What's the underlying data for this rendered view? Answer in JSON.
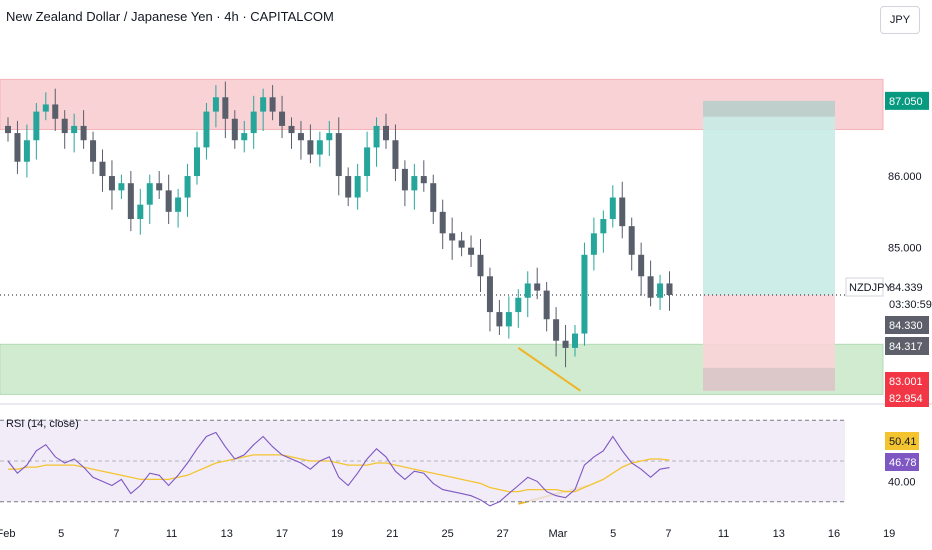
{
  "header": {
    "title": "New Zealand Dollar / Japanese Yen · 4h · CAPITALCOM",
    "currency_button": "JPY"
  },
  "colors": {
    "up": "#26a69a",
    "down": "#595e6b",
    "resistance_zone": "#f8c8cc",
    "support_zone": "#c8e8c8",
    "target": "#c8ebe6",
    "stop": "#f9d4d7",
    "rsi": "#7e57c2",
    "rsi_ma": "#f4c430",
    "annotation": "#f0b429",
    "tag_green": "#089981",
    "tag_red": "#f23645",
    "tag_gray": "#5d606b",
    "tag_purple": "#7e57c2",
    "tag_yellow": "#f4c430"
  },
  "chart_data": [
    {
      "type": "candlestick",
      "symbol": "NZDJPY",
      "timeframe": "4h",
      "x_tick_labels": [
        "Feb",
        "5",
        "7",
        "11",
        "13",
        "17",
        "19",
        "21",
        "25",
        "27",
        "Mar",
        "5",
        "7",
        "11",
        "13",
        "16",
        "19"
      ],
      "y_tick_labels": [
        "86.000",
        "85.000"
      ],
      "ylim": [
        82.9,
        87.9
      ],
      "close_series": [
        86.6,
        86.2,
        86.5,
        86.9,
        87.0,
        86.8,
        86.6,
        86.7,
        86.5,
        86.2,
        86.0,
        85.8,
        85.9,
        85.4,
        85.6,
        85.9,
        85.8,
        85.5,
        85.7,
        86.0,
        86.4,
        86.9,
        87.1,
        86.8,
        86.5,
        86.6,
        86.9,
        87.1,
        86.9,
        86.7,
        86.6,
        86.5,
        86.3,
        86.5,
        86.6,
        86.0,
        85.7,
        86.0,
        86.4,
        86.7,
        86.5,
        86.1,
        85.8,
        86.0,
        85.9,
        85.5,
        85.2,
        85.1,
        85.0,
        84.9,
        84.6,
        84.1,
        83.9,
        84.1,
        84.3,
        84.5,
        84.4,
        84.0,
        83.7,
        83.6,
        83.8,
        84.9,
        85.2,
        85.4,
        85.7,
        85.3,
        84.9,
        84.6,
        84.3,
        84.5,
        84.339
      ],
      "price_labels": [
        {
          "value": "87.050",
          "kind": "target"
        },
        {
          "value": "84.339",
          "kind": "last"
        },
        {
          "value": "03:30:59",
          "kind": "countdown"
        },
        {
          "value": "84.330",
          "kind": "gray"
        },
        {
          "value": "84.317",
          "kind": "gray"
        },
        {
          "value": "83.001",
          "kind": "stop"
        },
        {
          "value": "82.954",
          "kind": "stop_low"
        }
      ],
      "symbol_tag": "NZDJPY",
      "resistance_zone": [
        86.65,
        87.35
      ],
      "support_zone": [
        82.95,
        83.65
      ],
      "position": {
        "target": 87.05,
        "entry": 84.339,
        "stop": 83.001
      }
    },
    {
      "type": "line",
      "name": "RSI (14, close)",
      "y_tick_labels": [
        "40.00"
      ],
      "ylim": [
        25,
        75
      ],
      "bands": [
        70,
        30
      ],
      "midline": 50,
      "rsi": [
        50,
        44,
        48,
        55,
        58,
        52,
        49,
        51,
        47,
        42,
        40,
        38,
        41,
        34,
        38,
        44,
        43,
        38,
        43,
        49,
        56,
        62,
        64,
        57,
        51,
        53,
        58,
        62,
        57,
        53,
        51,
        49,
        46,
        50,
        52,
        42,
        38,
        44,
        51,
        56,
        52,
        45,
        41,
        45,
        44,
        39,
        36,
        35,
        34,
        33,
        31,
        28,
        30,
        34,
        38,
        42,
        40,
        35,
        33,
        32,
        36,
        48,
        52,
        55,
        62,
        55,
        49,
        46,
        42,
        46,
        46.78
      ],
      "rsi_ma": [
        46,
        46,
        47,
        47,
        48,
        48,
        48,
        48,
        47,
        46,
        45,
        44,
        43,
        42,
        41,
        41,
        41,
        41,
        42,
        43,
        45,
        47,
        49,
        50,
        51,
        52,
        53,
        53,
        53,
        53,
        52,
        51,
        50,
        50,
        50,
        49,
        48,
        48,
        48,
        49,
        49,
        48,
        47,
        46,
        45,
        44,
        43,
        42,
        41,
        40,
        39,
        37,
        36,
        35,
        35,
        36,
        36,
        36,
        36,
        35,
        35,
        37,
        39,
        41,
        44,
        47,
        49,
        50,
        51,
        51,
        50.41
      ],
      "value_labels": [
        "50.41",
        "46.78"
      ]
    }
  ]
}
